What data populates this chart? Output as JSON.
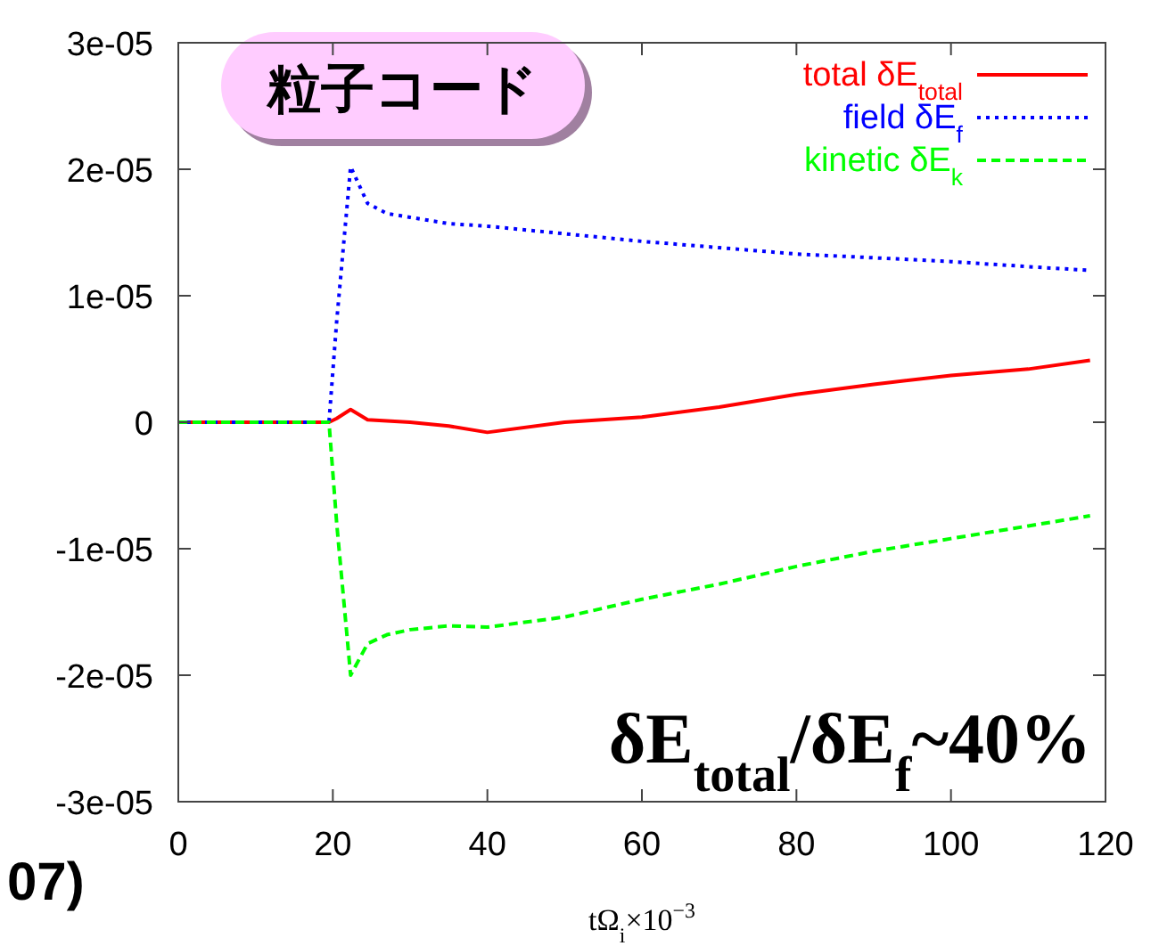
{
  "chart_data": {
    "type": "line",
    "xlabel": "tΩ$_{i}$×10$^{−3}$",
    "x": [
      0,
      10,
      19.5,
      20.5,
      22.3,
      24.5,
      27,
      30,
      35,
      40,
      50,
      60,
      70,
      80,
      90,
      100,
      110,
      118
    ],
    "series": [
      {
        "name": "total δE$_{total}$",
        "color": "#ff0000",
        "line_style": "solid",
        "values": [
          0,
          0,
          0,
          3e-07,
          1e-06,
          2e-07,
          1e-07,
          0,
          -3e-07,
          -8e-07,
          0,
          4e-07,
          1.2e-06,
          2.2e-06,
          3e-06,
          3.7e-06,
          4.2e-06,
          4.9e-06
        ]
      },
      {
        "name": "field δE$_{f}$",
        "color": "#0000ff",
        "line_style": "dotted",
        "values": [
          0,
          0,
          0,
          8e-06,
          2.02e-05,
          1.73e-05,
          1.65e-05,
          1.62e-05,
          1.57e-05,
          1.55e-05,
          1.49e-05,
          1.43e-05,
          1.38e-05,
          1.33e-05,
          1.3e-05,
          1.27e-05,
          1.23e-05,
          1.2e-05
        ]
      },
      {
        "name": "kinetic δE$_{k}$",
        "color": "#00ff00",
        "line_style": "dashed",
        "values": [
          0,
          0,
          0,
          -8e-06,
          -2e-05,
          -1.75e-05,
          -1.68e-05,
          -1.64e-05,
          -1.61e-05,
          -1.62e-05,
          -1.54e-05,
          -1.4e-05,
          -1.28e-05,
          -1.14e-05,
          -1.02e-05,
          -9.2e-06,
          -8.2e-06,
          -7.4e-06
        ]
      }
    ],
    "xlim": [
      0,
      120
    ],
    "xticks": [
      0,
      20,
      40,
      60,
      80,
      100,
      120
    ],
    "ylim": [
      -3e-05,
      3e-05
    ],
    "yticks": [
      {
        "value": -3e-05,
        "label": "-3e-05"
      },
      {
        "value": -2e-05,
        "label": "-2e-05"
      },
      {
        "value": -1e-05,
        "label": "-1e-05"
      },
      0,
      {
        "value": 1e-05,
        "label": "1e-05"
      },
      {
        "value": 2e-05,
        "label": "2e-05"
      },
      {
        "value": 3e-05,
        "label": "3e-05"
      }
    ],
    "legend": "top right",
    "grid": false,
    "marker": "none",
    "annotations": [
      "粒子コード",
      "δE$_{total}$/δE$_{f}$~40%",
      "07)"
    ]
  }
}
